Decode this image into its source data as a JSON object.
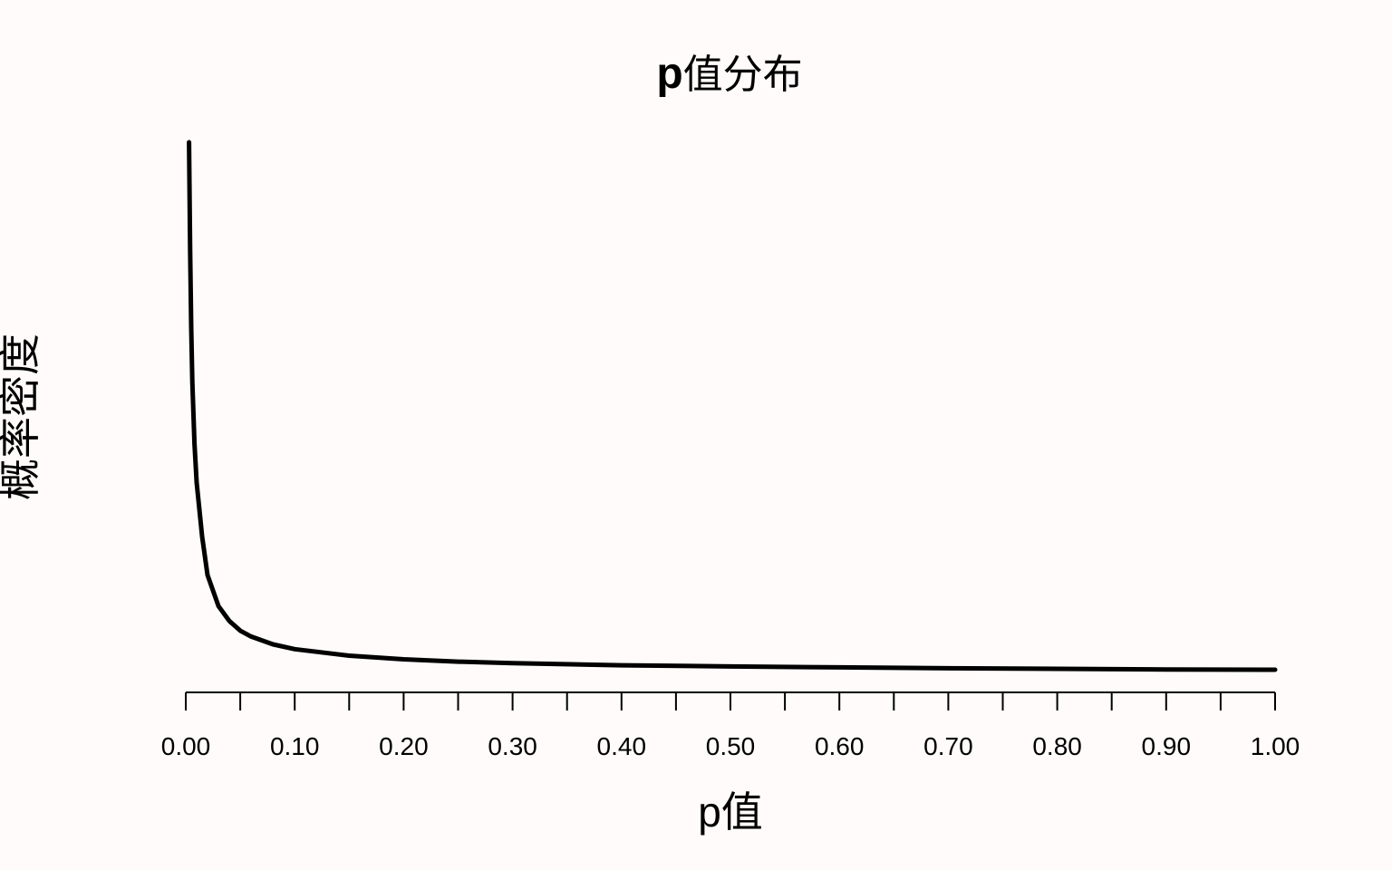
{
  "chart_data": {
    "type": "line",
    "title": "p值分布",
    "xlabel": "p值",
    "ylabel": "概率密度",
    "xlim": [
      0,
      1
    ],
    "ylim": [
      0,
      9
    ],
    "grid": false,
    "legend": "none",
    "x_ticks": [
      0.0,
      0.05,
      0.1,
      0.15,
      0.2,
      0.25,
      0.3,
      0.35,
      0.4,
      0.45,
      0.5,
      0.55,
      0.6,
      0.65,
      0.7,
      0.75,
      0.8,
      0.85,
      0.9,
      0.95,
      1.0
    ],
    "x_tick_labels": [
      "0.00",
      "0.10",
      "0.20",
      "0.30",
      "0.40",
      "0.50",
      "0.60",
      "0.70",
      "0.80",
      "0.90",
      "1.00"
    ],
    "x_tick_label_values": [
      0.0,
      0.1,
      0.2,
      0.3,
      0.4,
      0.5,
      0.6,
      0.7,
      0.8,
      0.9,
      1.0
    ],
    "series": [
      {
        "color": "#000000",
        "x": [
          0.003,
          0.004,
          0.005,
          0.006,
          0.008,
          0.01,
          0.015,
          0.02,
          0.03,
          0.04,
          0.05,
          0.06,
          0.08,
          0.1,
          0.15,
          0.2,
          0.25,
          0.3,
          0.4,
          0.5,
          0.6,
          0.7,
          0.8,
          0.9,
          1.0
        ],
        "y": [
          9.0,
          7.2,
          5.9,
          5.0,
          3.95,
          3.3,
          2.4,
          1.75,
          1.23,
          0.98,
          0.82,
          0.72,
          0.59,
          0.51,
          0.4,
          0.34,
          0.3,
          0.275,
          0.24,
          0.22,
          0.205,
          0.19,
          0.18,
          0.17,
          0.165
        ]
      }
    ]
  }
}
